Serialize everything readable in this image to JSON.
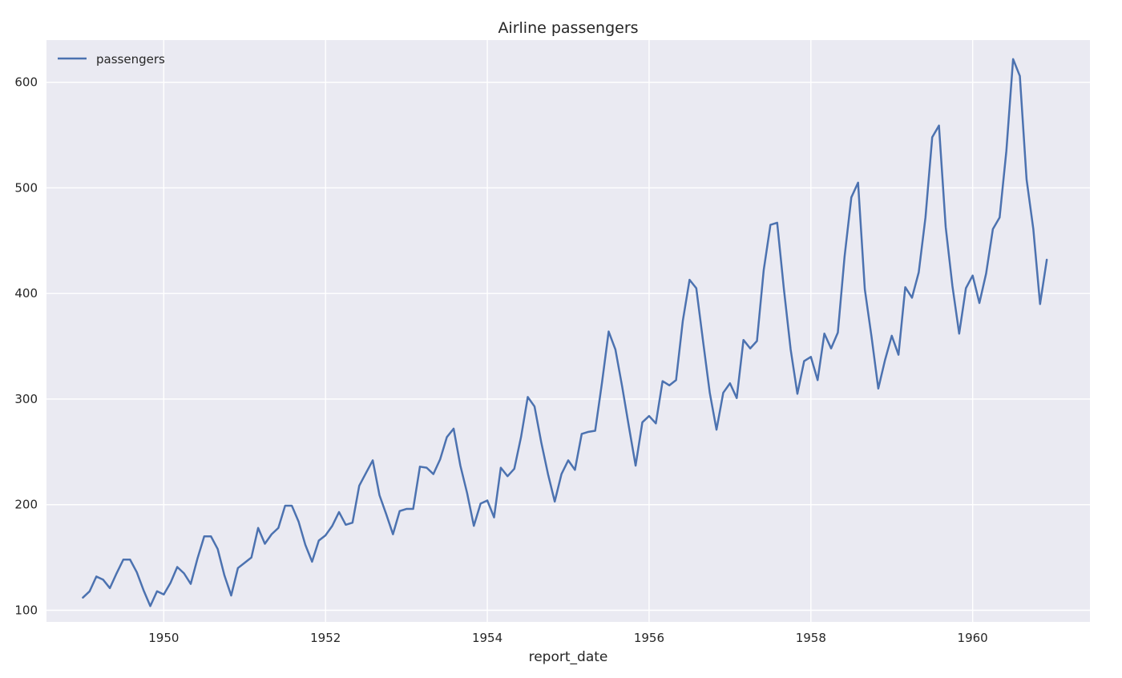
{
  "chart_data": {
    "type": "line",
    "title": "Airline passengers",
    "xlabel": "report_date",
    "ylabel": "",
    "xlim": [
      1948.55,
      1961.45
    ],
    "ylim": [
      89,
      640
    ],
    "xticks": [
      1950,
      1952,
      1954,
      1956,
      1958,
      1960
    ],
    "xtick_labels": [
      "1950",
      "1952",
      "1954",
      "1956",
      "1958",
      "1960"
    ],
    "yticks": [
      100,
      200,
      300,
      400,
      500,
      600
    ],
    "ytick_labels": [
      "100",
      "200",
      "300",
      "400",
      "500",
      "600"
    ],
    "grid": true,
    "legend_position": "top-left",
    "colors": {
      "background": "#eaeaf2",
      "grid": "#ffffff",
      "line": "#4c72b0"
    },
    "x_start": "1949-01",
    "x_step": "1 month",
    "series": [
      {
        "name": "passengers",
        "values": [
          112,
          118,
          132,
          129,
          121,
          135,
          148,
          148,
          136,
          119,
          104,
          118,
          115,
          126,
          141,
          135,
          125,
          149,
          170,
          170,
          158,
          133,
          114,
          140,
          145,
          150,
          178,
          163,
          172,
          178,
          199,
          199,
          184,
          162,
          146,
          166,
          171,
          180,
          193,
          181,
          183,
          218,
          230,
          242,
          209,
          191,
          172,
          194,
          196,
          196,
          236,
          235,
          229,
          243,
          264,
          272,
          237,
          211,
          180,
          201,
          204,
          188,
          235,
          227,
          234,
          264,
          302,
          293,
          259,
          229,
          203,
          229,
          242,
          233,
          267,
          269,
          270,
          315,
          364,
          347,
          312,
          274,
          237,
          278,
          284,
          277,
          317,
          313,
          318,
          374,
          413,
          405,
          355,
          306,
          271,
          306,
          315,
          301,
          356,
          348,
          355,
          422,
          465,
          467,
          404,
          347,
          305,
          336,
          340,
          318,
          362,
          348,
          363,
          435,
          491,
          505,
          404,
          359,
          310,
          337,
          360,
          342,
          406,
          396,
          420,
          472,
          548,
          559,
          463,
          407,
          362,
          405,
          417,
          391,
          419,
          461,
          472,
          535,
          622,
          606,
          508,
          461,
          390,
          432
        ]
      }
    ]
  }
}
